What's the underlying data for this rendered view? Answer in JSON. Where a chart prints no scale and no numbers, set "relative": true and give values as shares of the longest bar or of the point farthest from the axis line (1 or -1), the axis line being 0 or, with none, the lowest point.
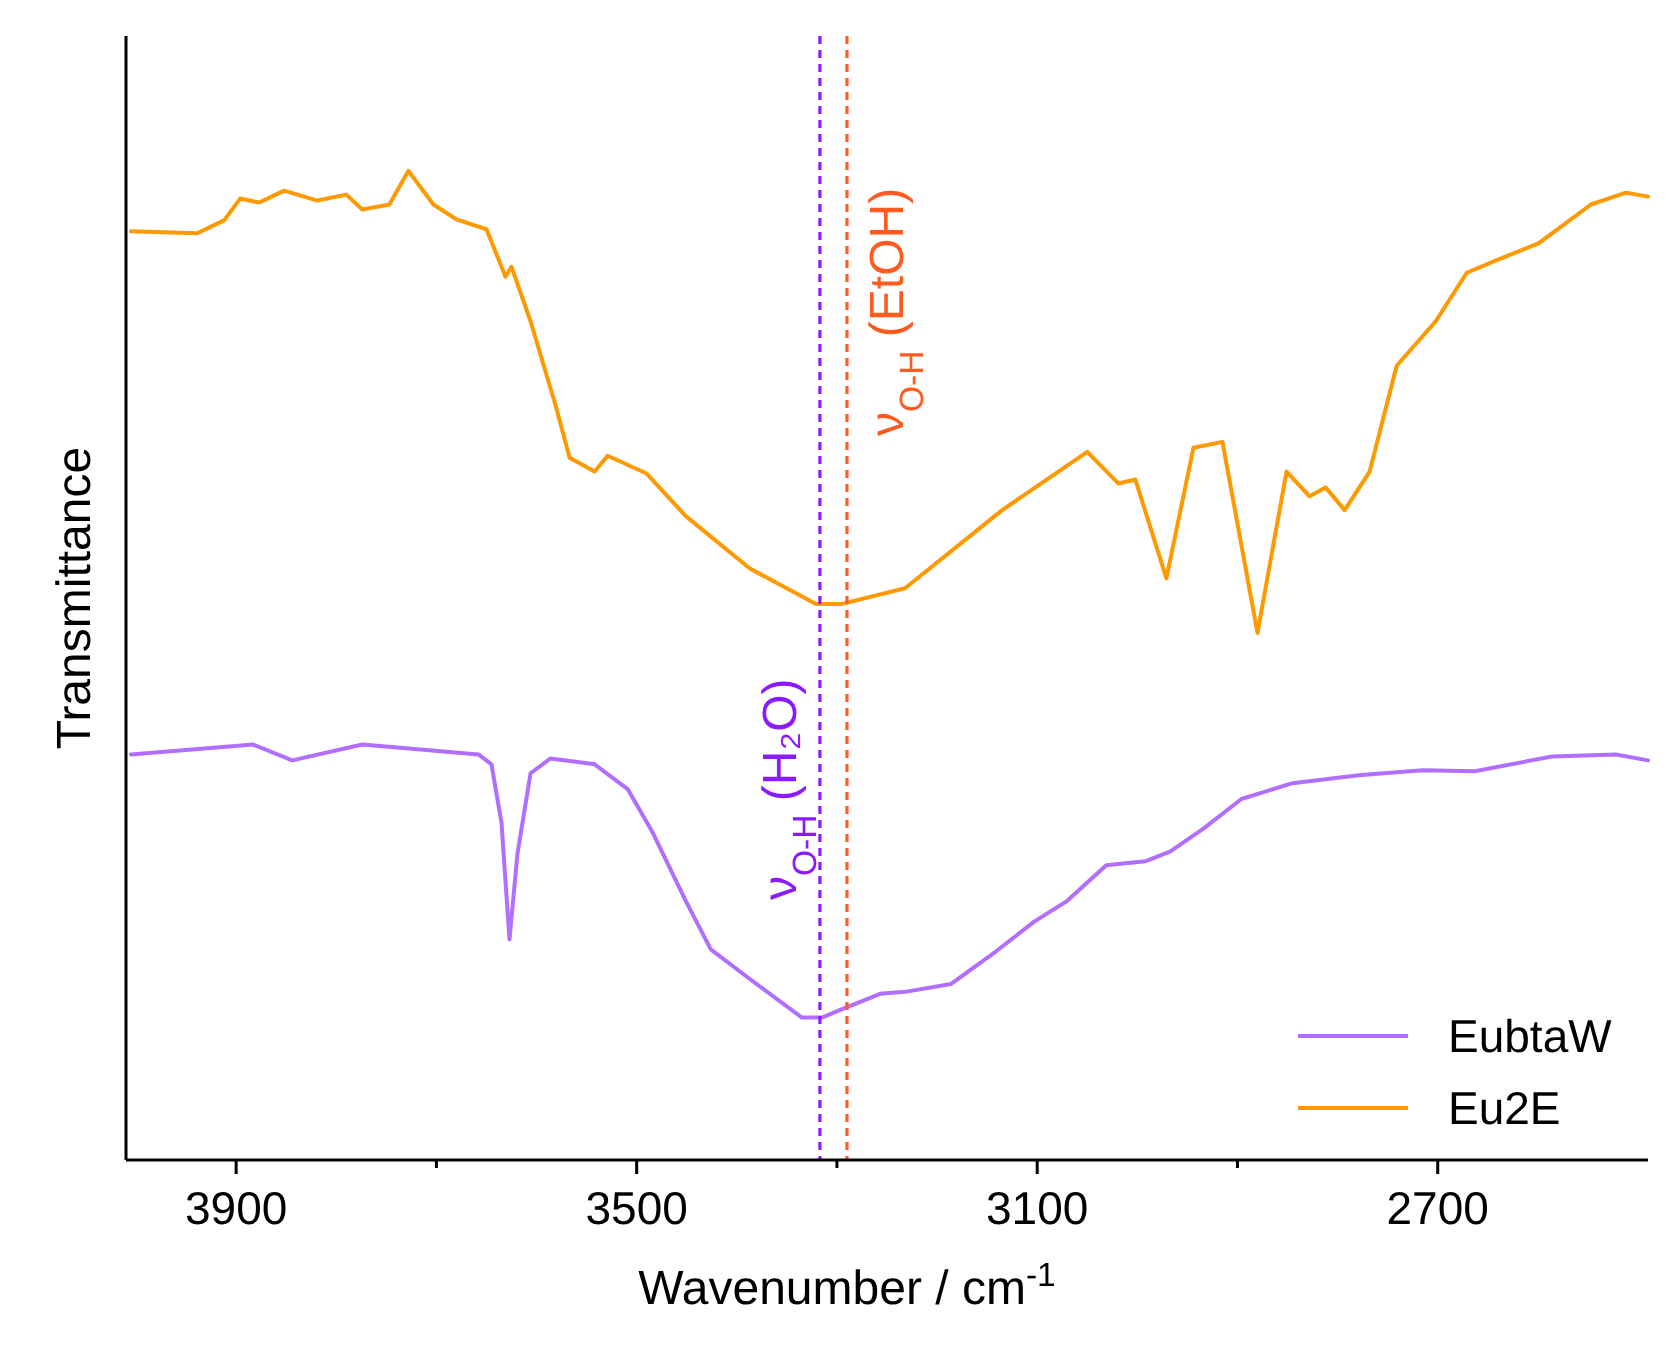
{
  "chart_data": {
    "type": "line",
    "xlabel": "Wavenumber / cm$^{-1}$",
    "ylabel": "Transmittance",
    "relative": true,
    "xlim": [
      4010,
      2490
    ],
    "xticks": [
      3900,
      {
        "value": 3700,
        "label": null
      },
      3500,
      {
        "value": 3300,
        "label": null
      },
      3100,
      {
        "value": 2900,
        "label": null
      },
      2700
    ],
    "legend": "bottom right",
    "line_style": "solid",
    "marker": "none",
    "series": [
      {
        "name": "EubtaW",
        "color": "#b26eff",
        "x": [
          4005,
          3883,
          3844,
          3774,
          3658,
          3645,
          3635,
          3627,
          3619,
          3606,
          3586,
          3542,
          3509,
          3484,
          3451,
          3426,
          3387,
          3335,
          3315,
          3296,
          3257,
          3232,
          3186,
          3141,
          3103,
          3070,
          3031,
          2992,
          2967,
          2934,
          2896,
          2845,
          2779,
          2715,
          2663,
          2586,
          2522,
          2490
        ],
        "values": [
          0.41,
          0.42,
          0.404,
          0.42,
          0.41,
          0.4,
          0.341,
          0.223,
          0.31,
          0.391,
          0.406,
          0.4,
          0.375,
          0.331,
          0.262,
          0.213,
          0.183,
          0.144,
          0.144,
          0.152,
          0.168,
          0.17,
          0.178,
          0.211,
          0.241,
          0.262,
          0.298,
          0.302,
          0.312,
          0.335,
          0.365,
          0.381,
          0.389,
          0.394,
          0.393,
          0.408,
          0.41,
          0.404
        ]
      },
      {
        "name": "Eu2E",
        "color": "#ff9900",
        "x": [
          4005,
          3939,
          3912,
          3896,
          3877,
          3852,
          3819,
          3790,
          3774,
          3747,
          3728,
          3703,
          3680,
          3650,
          3631,
          3625,
          3606,
          3581,
          3567,
          3542,
          3529,
          3490,
          3451,
          3387,
          3321,
          3296,
          3232,
          3135,
          3050,
          3019,
          3002,
          2971,
          2944,
          2915,
          2880,
          2851,
          2828,
          2812,
          2793,
          2768,
          2741,
          2702,
          2671,
          2638,
          2599,
          2547,
          2512,
          2490
        ],
        "values": [
          0.939,
          0.937,
          0.95,
          0.972,
          0.968,
          0.98,
          0.97,
          0.976,
          0.961,
          0.966,
          1,
          0.966,
          0.951,
          0.941,
          0.893,
          0.903,
          0.848,
          0.763,
          0.71,
          0.696,
          0.712,
          0.694,
          0.651,
          0.598,
          0.562,
          0.562,
          0.578,
          0.657,
          0.716,
          0.684,
          0.688,
          0.588,
          0.72,
          0.726,
          0.533,
          0.696,
          0.671,
          0.68,
          0.657,
          0.696,
          0.803,
          0.848,
          0.897,
          0.911,
          0.927,
          0.966,
          0.978,
          0.974
        ]
      }
    ],
    "ref_lines": [
      {
        "axis": "x",
        "value": 3317,
        "label": "ν$_{O-H}$ (H₂O)",
        "color": "#8c1aff",
        "line_style": "dashed"
      },
      {
        "axis": "x",
        "value": 3290,
        "label": "ν$_{O-H}$ (EtOH)",
        "color": "#ff5a1f",
        "line_style": "dashed"
      }
    ]
  }
}
